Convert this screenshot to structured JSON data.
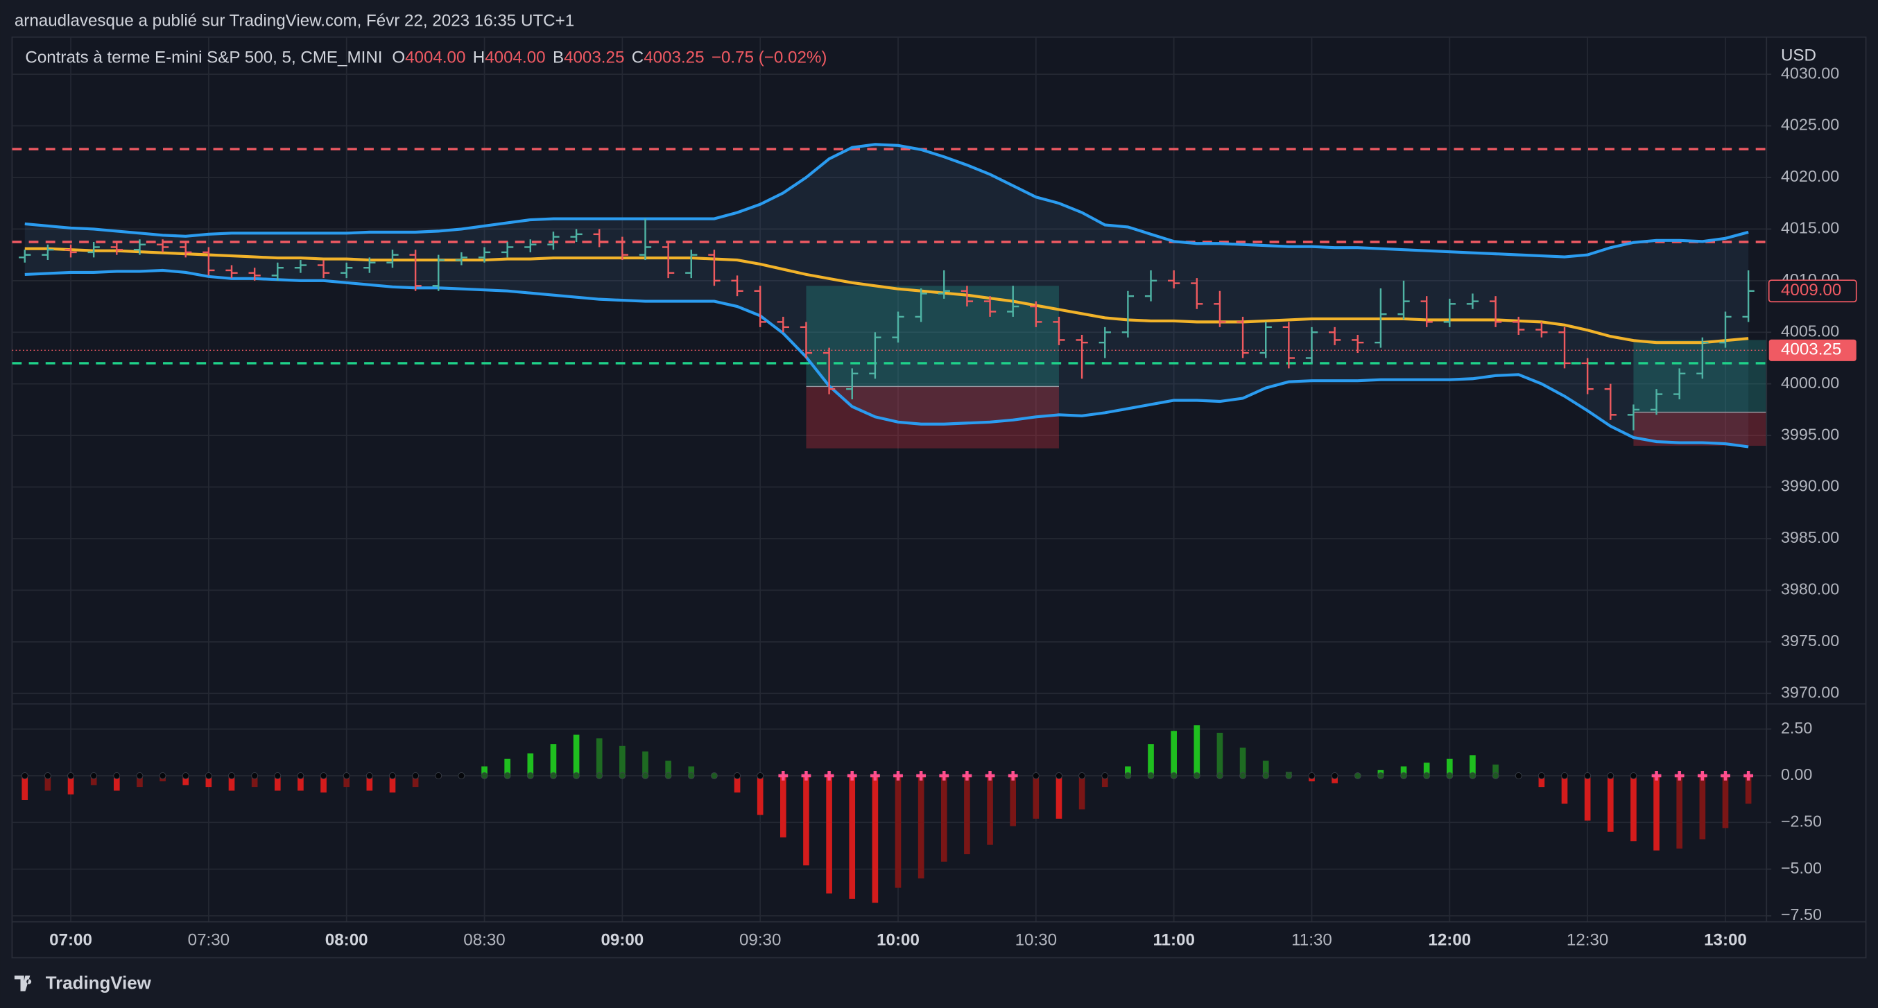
{
  "header": {
    "publisher": "arnaudlavesque a publié sur TradingView.com, Févr 22, 2023 16:35 UTC+1",
    "brand": "TradingView"
  },
  "chart_data": [
    {
      "type": "ohlc",
      "title": "Contrats à terme E-mini S&P 500, 5, CME_MINI",
      "legend": [
        {
          "key": "O",
          "value": "4004.00"
        },
        {
          "key": "H",
          "value": "4004.00"
        },
        {
          "key": "B",
          "value": "4003.25"
        },
        {
          "key": "C",
          "value": "4003.25"
        }
      ],
      "change": "−0.75 (−0.02%)",
      "currency": "USD",
      "categories": [
        null,
        null,
        "07:00",
        null,
        null,
        null,
        null,
        null,
        "07:30",
        null,
        null,
        null,
        null,
        null,
        "08:00",
        null,
        null,
        null,
        null,
        null,
        "08:30",
        null,
        null,
        null,
        null,
        null,
        "09:00",
        null,
        null,
        null,
        null,
        null,
        "09:30",
        null,
        null,
        null,
        null,
        null,
        "10:00",
        null,
        null,
        null,
        null,
        null,
        "10:30",
        null,
        null,
        null,
        null,
        null,
        "11:00",
        null,
        null,
        null,
        null,
        null,
        "11:30",
        null,
        null,
        null,
        null,
        null,
        "12:00",
        null,
        null,
        null,
        null,
        null,
        "12:30",
        null,
        null,
        null,
        null,
        null,
        "13:00",
        null
      ],
      "open": [
        4012.25,
        4012.5,
        4013,
        4012.75,
        4013.25,
        4013,
        4013.5,
        4013.25,
        4012.75,
        4011,
        4010.75,
        4010.5,
        4011.25,
        4011.5,
        4010.75,
        4011.25,
        4011.75,
        4012.5,
        4009.5,
        4012,
        4012.25,
        4012.75,
        4013.25,
        4013.5,
        4014.25,
        4014.5,
        4013.75,
        4012.5,
        4013.25,
        4010.75,
        4012.5,
        4010,
        4009,
        4006,
        4005.5,
        4003,
        3999.5,
        4001,
        4004.5,
        4006.5,
        4008.75,
        4009,
        4008,
        4007,
        4007.5,
        4006,
        4004.25,
        4004,
        4005,
        4008.5,
        4010,
        4009.75,
        4007.75,
        4006,
        4003,
        4005.5,
        4002.5,
        4005,
        4004.25,
        4004,
        4006.75,
        4008,
        4006,
        4007.75,
        4008,
        4006,
        4005.25,
        4005,
        4002,
        3999.5,
        3997,
        3997.5,
        3999,
        4001,
        4004,
        4006.5
      ],
      "high": [
        4013,
        4013.5,
        4013.5,
        4013.75,
        4013.75,
        4014,
        4014,
        4013.75,
        4013.25,
        4011.5,
        4011.25,
        4011.75,
        4012,
        4012,
        4011.75,
        4012.25,
        4013,
        4013,
        4012.5,
        4012.75,
        4013.25,
        4013.75,
        4014,
        4014.75,
        4015,
        4015,
        4014.25,
        4016,
        4013.75,
        4013,
        4013,
        4010.5,
        4009.5,
        4006.5,
        4006,
        4003.5,
        4001.5,
        4005,
        4007,
        4009.25,
        4011,
        4009.5,
        4008.5,
        4009.5,
        4008,
        4006.5,
        4004.75,
        4005.5,
        4009,
        4011,
        4011,
        4010.25,
        4009,
        4006.5,
        4006,
        4006,
        4005.5,
        4005.5,
        4004.75,
        4009.25,
        4010,
        4008.5,
        4008.25,
        4008.75,
        4008.5,
        4006.5,
        4006,
        4005.5,
        4002.5,
        4000,
        3998,
        3999.5,
        4001.5,
        4004.5,
        4007,
        4011
      ],
      "low": [
        4011.75,
        4012,
        4012.25,
        4012.25,
        4012.5,
        4012.5,
        4012.75,
        4012.25,
        4010.5,
        4010.25,
        4010,
        4010,
        4010.75,
        4010.25,
        4010.25,
        4010.75,
        4011.25,
        4009,
        4009,
        4011.5,
        4011.75,
        4012.25,
        4012.75,
        4013,
        4013.75,
        4013.25,
        4012,
        4012,
        4010.25,
        4010.25,
        4009.5,
        4008.5,
        4005.5,
        4005,
        4002.5,
        3999,
        3998.5,
        4000.5,
        4004,
        4006,
        4008.25,
        4007.5,
        4006.5,
        4006.5,
        4005.5,
        4003.75,
        4000.5,
        4002.5,
        4004.5,
        4008,
        4009.25,
        4007.25,
        4005.5,
        4002.5,
        4002.5,
        4001.5,
        4002,
        4003.75,
        4003,
        4003.5,
        4006.25,
        4005.5,
        4005.5,
        4007.25,
        4005.5,
        4004.75,
        4004.5,
        4001.5,
        3999,
        3996.5,
        3995.5,
        3997,
        3998.5,
        4000.5,
        4003.5,
        4006
      ],
      "close": [
        4012.5,
        4013,
        4012.75,
        4013.25,
        4013,
        4013.5,
        4013.25,
        4012.75,
        4011,
        4010.75,
        4010.5,
        4011.25,
        4011.5,
        4010.75,
        4011.25,
        4011.75,
        4012.5,
        4009.5,
        4012,
        4012.25,
        4012.75,
        4013.25,
        4013.5,
        4014.25,
        4014.5,
        4013.75,
        4012.5,
        4013.25,
        4010.75,
        4012.5,
        4010,
        4009,
        4006,
        4005.5,
        4003,
        3999.5,
        4001,
        4004.5,
        4006.5,
        4008.75,
        4009,
        4008,
        4007,
        4007.5,
        4006,
        4004.25,
        4004,
        4005,
        4008.5,
        4010,
        4009.75,
        4007.75,
        4006,
        4003,
        4005.5,
        4002.5,
        4005,
        4004.25,
        4004,
        4006.75,
        4008,
        4006,
        4007.75,
        4008,
        4006,
        4005.25,
        4005,
        4002,
        3999.5,
        3997,
        3997.5,
        3999,
        4001,
        4004,
        4006.5,
        4009
      ],
      "up_color": "#4fb3a4",
      "down_color": "#ef5a5f",
      "overlays": [
        {
          "color": "#2b9cf0",
          "values": [
            4015.5,
            4015.3,
            4015.1,
            4015,
            4014.8,
            4014.6,
            4014.4,
            4014.3,
            4014.5,
            4014.6,
            4014.6,
            4014.6,
            4014.6,
            4014.6,
            4014.6,
            4014.7,
            4014.7,
            4014.7,
            4014.8,
            4015,
            4015.3,
            4015.6,
            4015.9,
            4016,
            4016,
            4016,
            4016,
            4016,
            4016,
            4016,
            4016,
            4016.6,
            4017.4,
            4018.5,
            4020,
            4021.8,
            4022.9,
            4023.2,
            4023.1,
            4022.7,
            4022,
            4021.2,
            4020.3,
            4019.2,
            4018.1,
            4017.5,
            4016.6,
            4015.4,
            4015.2,
            4014.5,
            4013.8,
            4013.6,
            4013.6,
            4013.5,
            4013.4,
            4013.3,
            4013.3,
            4013.2,
            4013.2,
            4013.1,
            4013,
            4012.9,
            4012.8,
            4012.7,
            4012.6,
            4012.5,
            4012.4,
            4012.3,
            4012.5,
            4013.2,
            4013.7,
            4013.9,
            4013.9,
            4013.8,
            4014.1,
            4014.7
          ]
        },
        {
          "color": "#2b9cf0",
          "values": [
            4010.6,
            4010.7,
            4010.8,
            4010.8,
            4010.9,
            4010.9,
            4011,
            4010.8,
            4010.4,
            4010.2,
            4010.2,
            4010.1,
            4010,
            4010,
            4009.8,
            4009.6,
            4009.4,
            4009.3,
            4009.3,
            4009.2,
            4009.1,
            4009,
            4008.8,
            4008.6,
            4008.4,
            4008.2,
            4008.1,
            4008,
            4008,
            4008,
            4008,
            4007.5,
            4006.6,
            4004.9,
            4002.6,
            3999.8,
            3997.8,
            3996.8,
            3996.3,
            3996.1,
            3996.1,
            3996.2,
            3996.3,
            3996.5,
            3996.8,
            3997,
            3996.9,
            3997.2,
            3997.6,
            3998,
            3998.4,
            3998.4,
            3998.3,
            3998.6,
            3999.6,
            4000.2,
            4000.3,
            4000.3,
            4000.3,
            4000.4,
            4000.4,
            4000.4,
            4000.4,
            4000.5,
            4000.8,
            4000.9,
            4000,
            3998.8,
            3997.4,
            3995.9,
            3994.8,
            3994.4,
            3994.3,
            3994.3,
            3994.2,
            3993.9
          ]
        },
        {
          "color": "#f2b32a",
          "values": [
            4013.1,
            4013.1,
            4013,
            4012.9,
            4012.9,
            4012.8,
            4012.7,
            4012.6,
            4012.5,
            4012.4,
            4012.3,
            4012.2,
            4012.2,
            4012.1,
            4012.1,
            4012,
            4012,
            4012,
            4012,
            4012,
            4012,
            4012.1,
            4012.1,
            4012.2,
            4012.2,
            4012.2,
            4012.2,
            4012.2,
            4012.2,
            4012.2,
            4012.1,
            4012,
            4011.6,
            4011.1,
            4010.6,
            4010.2,
            4009.8,
            4009.5,
            4009.2,
            4009,
            4008.8,
            4008.6,
            4008.3,
            4008,
            4007.6,
            4007.2,
            4006.8,
            4006.4,
            4006.2,
            4006.1,
            4006.1,
            4006,
            4006,
            4006,
            4006.1,
            4006.2,
            4006.3,
            4006.3,
            4006.3,
            4006.3,
            4006.3,
            4006.2,
            4006.2,
            4006.2,
            4006.2,
            4006.1,
            4006,
            4005.7,
            4005.2,
            4004.6,
            4004.2,
            4004,
            4004,
            4004,
            4004.2,
            4004.4
          ]
        }
      ],
      "band_fill": "rgba(80,120,170,0.13)",
      "hlines": [
        {
          "value": 4022.75,
          "color": "#f05a63"
        },
        {
          "value": 4013.75,
          "color": "#f05a63"
        },
        {
          "value": 4002,
          "color": "#1fd28a"
        }
      ],
      "positions": [
        {
          "start": 34,
          "end": 45,
          "entry": 3999.75,
          "target": 4009.5,
          "stop": 3993.75
        },
        {
          "start": 70,
          "end": 76,
          "entry": 3997.25,
          "target": 4004.25,
          "stop": 3994
        }
      ],
      "last_price": {
        "value": 4003.25,
        "label": "4003.25"
      },
      "price_marker": {
        "value": 4009,
        "label": "4009.00"
      },
      "ylim": [
        3969.1,
        4033.6
      ],
      "yticks": [
        {
          "value": 3970,
          "label": "3970.00"
        },
        {
          "value": 3975,
          "label": "3975.00"
        },
        {
          "value": 3980,
          "label": "3980.00"
        },
        {
          "value": 3985,
          "label": "3985.00"
        },
        {
          "value": 3990,
          "label": "3990.00"
        },
        {
          "value": 3995,
          "label": "3995.00"
        },
        {
          "value": 4000,
          "label": "4000.00"
        },
        {
          "value": 4005,
          "label": "4005.00"
        },
        {
          "value": 4010,
          "label": "4010.00"
        },
        {
          "value": 4015,
          "label": "4015.00"
        },
        {
          "value": 4020,
          "label": "4020.00"
        },
        {
          "value": 4025,
          "label": "4025.00"
        },
        {
          "value": 4030,
          "label": "4030.00"
        }
      ],
      "grid": true
    },
    {
      "type": "histogram",
      "values": [
        -1.3,
        -0.8,
        -1.0,
        -0.5,
        -0.8,
        -0.6,
        -0.3,
        -0.5,
        -0.6,
        -0.8,
        -0.6,
        -0.8,
        -0.8,
        -0.9,
        -0.6,
        -0.8,
        -0.9,
        -0.6,
        -0.1,
        0.1,
        0.5,
        0.9,
        1.2,
        1.7,
        2.2,
        2.0,
        1.6,
        1.3,
        0.8,
        0.5,
        0.1,
        -0.9,
        -2.1,
        -3.3,
        -4.8,
        -6.3,
        -6.6,
        -6.8,
        -6.0,
        -5.5,
        -4.6,
        -4.2,
        -3.7,
        -2.7,
        -2.3,
        -2.3,
        -1.8,
        -0.6,
        0.5,
        1.7,
        2.4,
        2.7,
        2.3,
        1.5,
        0.8,
        0.2,
        -0.3,
        -0.4,
        0.1,
        0.3,
        0.5,
        0.7,
        0.9,
        1.1,
        0.6,
        0.1,
        -0.6,
        -1.5,
        -2.4,
        -3.0,
        -3.5,
        -4.0,
        -3.9,
        -3.4,
        -2.8,
        -1.5
      ],
      "colors": {
        "up_rising": "#1fbf1f",
        "up_falling": "#1e6b22",
        "down_falling": "#d41c1c",
        "down_rising": "#7a1616"
      },
      "zero_markers": [
        {
          "from": 0,
          "to": 19,
          "color": "#05070b",
          "shape": "dot"
        },
        {
          "from": 20,
          "to": 30,
          "color": "#1e5a22",
          "shape": "dot"
        },
        {
          "from": 31,
          "to": 32,
          "color": "#05070b",
          "shape": "dot"
        },
        {
          "from": 33,
          "to": 43,
          "color": "#ff4f8e",
          "shape": "cross"
        },
        {
          "from": 44,
          "to": 47,
          "color": "#05070b",
          "shape": "dot"
        },
        {
          "from": 48,
          "to": 55,
          "color": "#1e5a22",
          "shape": "dot"
        },
        {
          "from": 56,
          "to": 57,
          "color": "#05070b",
          "shape": "dot"
        },
        {
          "from": 58,
          "to": 64,
          "color": "#1e5a22",
          "shape": "dot"
        },
        {
          "from": 65,
          "to": 70,
          "color": "#05070b",
          "shape": "dot"
        },
        {
          "from": 71,
          "to": 75,
          "color": "#ff4f8e",
          "shape": "cross"
        }
      ],
      "ylim": [
        -7.82,
        3.78
      ],
      "yticks": [
        {
          "value": 2.5,
          "label": "2.50"
        },
        {
          "value": 0,
          "label": "0.00"
        },
        {
          "value": -2.5,
          "label": "−2.50"
        },
        {
          "value": -5,
          "label": "−5.00"
        },
        {
          "value": -7.5,
          "label": "−7.50"
        }
      ],
      "grid": true
    }
  ]
}
